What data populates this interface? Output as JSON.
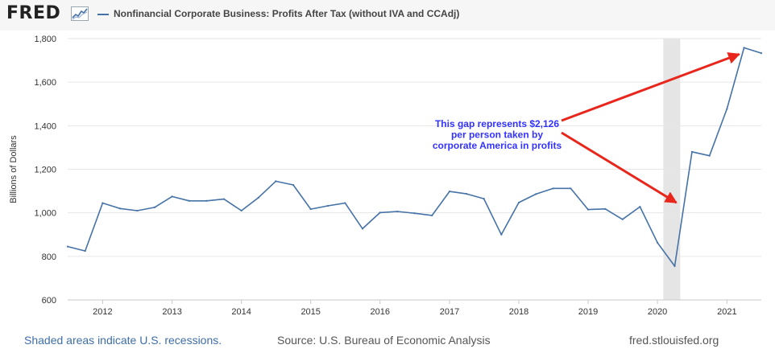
{
  "header": {
    "logo_text": "FRED",
    "logo_icon": "chart-line-icon",
    "series_title": "Nonfinancial Corporate Business: Profits After Tax (without IVA and CCAdj)"
  },
  "colors": {
    "series": "#4572a7",
    "recession": "#e5e5e5",
    "annotation_text": "#3333ff",
    "arrow": "#e8261c",
    "footer_link": "#3e6ea8"
  },
  "chart_data": {
    "type": "line",
    "title": "Nonfinancial Corporate Business: Profits After Tax (without IVA and CCAdj)",
    "ylabel": "Billions of Dollars",
    "xlabel": "",
    "ylim": [
      600,
      1800
    ],
    "yticks": [
      600,
      800,
      1000,
      1200,
      1400,
      1600,
      1800
    ],
    "ytick_labels": [
      "600",
      "800",
      "1,000",
      "1,200",
      "1,400",
      "1,600",
      "1,800"
    ],
    "xlim": [
      "2011-07-01",
      "2021-07-01"
    ],
    "xticks": [
      "2012-01-01",
      "2013-01-01",
      "2014-01-01",
      "2015-01-01",
      "2016-01-01",
      "2017-01-01",
      "2018-01-01",
      "2019-01-01",
      "2020-01-01",
      "2021-01-01"
    ],
    "xtick_labels": [
      "2012",
      "2013",
      "2014",
      "2015",
      "2016",
      "2017",
      "2018",
      "2019",
      "2020",
      "2021"
    ],
    "grid": true,
    "series": [
      {
        "x": [
          "2011-07-01",
          "2011-10-01",
          "2012-01-01",
          "2012-04-01",
          "2012-07-01",
          "2012-10-01",
          "2013-01-01",
          "2013-04-01",
          "2013-07-01",
          "2013-10-01",
          "2014-01-01",
          "2014-04-01",
          "2014-07-01",
          "2014-10-01",
          "2015-01-01",
          "2015-04-01",
          "2015-07-01",
          "2015-10-01",
          "2016-01-01",
          "2016-04-01",
          "2016-07-01",
          "2016-10-01",
          "2017-01-01",
          "2017-04-01",
          "2017-07-01",
          "2017-10-01",
          "2018-01-01",
          "2018-04-01",
          "2018-07-01",
          "2018-10-01",
          "2019-01-01",
          "2019-04-01",
          "2019-07-01",
          "2019-10-01",
          "2020-01-01",
          "2020-04-01",
          "2020-07-01",
          "2020-10-01",
          "2021-01-01",
          "2021-04-01",
          "2021-07-01"
        ],
        "values": [
          845,
          825,
          1045,
          1020,
          1010,
          1025,
          1075,
          1055,
          1055,
          1063,
          1010,
          1070,
          1145,
          1128,
          1017,
          1032,
          1045,
          927,
          1001,
          1006,
          998,
          988,
          1098,
          1087,
          1065,
          900,
          1047,
          1086,
          1112,
          1112,
          1015,
          1018,
          970,
          1028,
          863,
          755,
          1280,
          1262,
          1477,
          1758,
          1733
        ]
      }
    ],
    "recessions": [
      [
        "2020-02-01",
        "2020-04-30"
      ]
    ],
    "annotations": [
      {
        "lines": [
          "This gap represents $2,126",
          "per person taken by",
          "corporate America in profits"
        ]
      }
    ]
  },
  "footer": {
    "recession_note": "Shaded areas indicate U.S. recessions.",
    "source": "Source: U.S. Bureau of Economic Analysis",
    "site": "fred.stlouisfed.org"
  }
}
